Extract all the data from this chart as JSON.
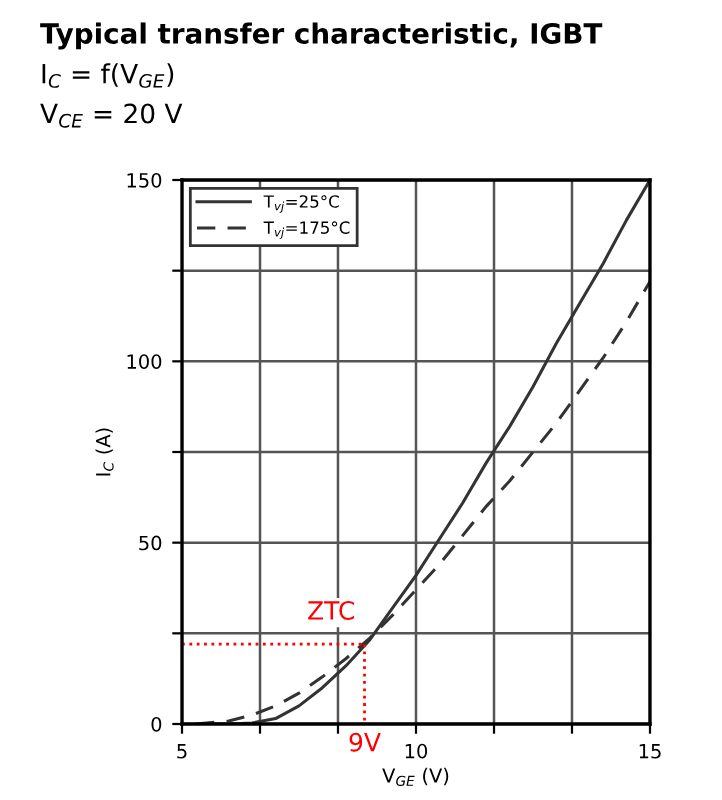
{
  "chart_data": {
    "type": "line",
    "title": "Typical transfer characteristic, IGBT",
    "subtitle": "I$_{C}$ = f(V$_{GE}$)",
    "xlabel": "V$_{GE}$ (V)",
    "ylabel": "I$_{C}$ (A)",
    "annotations": [
      "V$_{CE}$ = 20 V",
      {
        "text": "ZTC",
        "x": 8.9,
        "y": 22
      },
      {
        "text": "9V",
        "x": 8.9,
        "y": 22
      }
    ],
    "xlim": [
      5,
      15
    ],
    "ylim": [
      0,
      150
    ],
    "xticks": [
      5,
      {
        "value": 6.667,
        "label": null
      },
      {
        "value": 8.333,
        "label": null
      },
      10,
      {
        "value": 11.667,
        "label": null
      },
      {
        "value": 13.333,
        "label": null
      },
      15
    ],
    "yticks": [
      0,
      {
        "value": 25,
        "label": null
      },
      50,
      {
        "value": 75,
        "label": null
      },
      100,
      {
        "value": 125,
        "label": null
      },
      150
    ],
    "grid": true,
    "legend": "top left",
    "series": [
      {
        "name": "T$_{vj}$=25°C",
        "color": "#333333",
        "line_style": "solid",
        "x": [
          5.5,
          6,
          6.5,
          7,
          7.5,
          8,
          8.5,
          9,
          9.5,
          10,
          10.5,
          11,
          11.5,
          12,
          12.5,
          13,
          13.5,
          14,
          14.5,
          15
        ],
        "values": [
          0,
          0,
          0.3,
          1.5,
          5,
          10,
          16,
          23,
          32,
          41,
          51,
          61,
          72,
          82,
          93,
          105,
          116,
          127,
          139,
          150
        ]
      },
      {
        "name": "T$_{vj}$=175°C",
        "color": "#333333",
        "line_style": "dashed",
        "x": [
          5.3,
          6,
          6.5,
          7,
          7.5,
          8,
          8.5,
          9,
          9.5,
          10,
          10.5,
          11,
          11.5,
          12,
          12.5,
          13,
          13.5,
          14,
          14.5,
          15
        ],
        "values": [
          0,
          0.8,
          2.5,
          5,
          8.5,
          13,
          18,
          23.5,
          30,
          37,
          44,
          52,
          60,
          67,
          75,
          83,
          92,
          101,
          111,
          122
        ]
      }
    ]
  }
}
